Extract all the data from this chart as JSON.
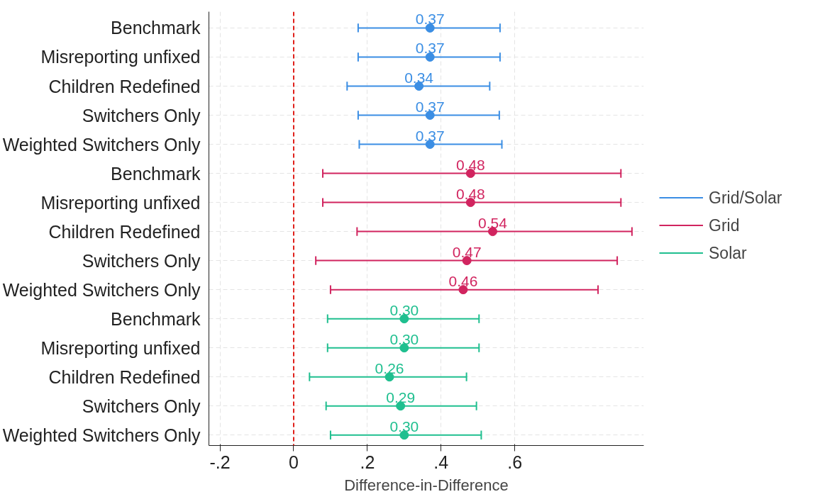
{
  "chart_data": {
    "type": "scatter",
    "xlabel": "Difference-in-Difference",
    "categories": [
      "Benchmark",
      "Misreporting unfixed",
      "Children Redefined",
      "Switchers Only",
      "Weighted Switchers Only",
      "Benchmark",
      "Misreporting unfixed",
      "Children Redefined",
      "Switchers Only",
      "Weighted Switchers Only",
      "Benchmark",
      "Misreporting unfixed",
      "Children Redefined",
      "Switchers Only",
      "Weighted Switchers Only"
    ],
    "orientation": "horizontal",
    "series": [
      {
        "name": "Grid/Solar",
        "color": "#3b8ee4",
        "values": [
          0.37,
          0.37,
          0.34,
          0.37,
          0.37,
          null,
          null,
          null,
          null,
          null,
          null,
          null,
          null,
          null,
          null
        ],
        "value_labels": [
          "0.37",
          "0.37",
          "0.34",
          "0.37",
          "0.37",
          null,
          null,
          null,
          null,
          null,
          null,
          null,
          null,
          null,
          null
        ],
        "errors": [
          [
            0.175,
            0.56
          ],
          [
            0.175,
            0.56
          ],
          [
            0.145,
            0.532
          ],
          [
            0.175,
            0.558
          ],
          [
            0.178,
            0.565
          ],
          null,
          null,
          null,
          null,
          null,
          null,
          null,
          null,
          null,
          null
        ]
      },
      {
        "name": "Grid",
        "color": "#d1245f",
        "values": [
          null,
          null,
          null,
          null,
          null,
          0.48,
          0.48,
          0.54,
          0.47,
          0.46,
          null,
          null,
          null,
          null,
          null
        ],
        "value_labels": [
          null,
          null,
          null,
          null,
          null,
          "0.48",
          "0.48",
          "0.54",
          "0.47",
          "0.46",
          null,
          null,
          null,
          null,
          null
        ],
        "errors": [
          null,
          null,
          null,
          null,
          null,
          [
            0.079,
            0.888
          ],
          [
            0.079,
            0.888
          ],
          [
            0.172,
            0.918
          ],
          [
            0.06,
            0.878
          ],
          [
            0.1,
            0.826
          ],
          null,
          null,
          null,
          null,
          null
        ]
      },
      {
        "name": "Solar",
        "color": "#1fbf8f",
        "values": [
          null,
          null,
          null,
          null,
          null,
          null,
          null,
          null,
          null,
          null,
          0.3,
          0.3,
          0.26,
          0.29,
          0.3
        ],
        "value_labels": [
          null,
          null,
          null,
          null,
          null,
          null,
          null,
          null,
          null,
          null,
          "0.30",
          "0.30",
          "0.26",
          "0.29",
          "0.30"
        ],
        "errors": [
          null,
          null,
          null,
          null,
          null,
          null,
          null,
          null,
          null,
          null,
          [
            0.092,
            0.503
          ],
          [
            0.092,
            0.503
          ],
          [
            0.043,
            0.469
          ],
          [
            0.088,
            0.496
          ],
          [
            0.1,
            0.509
          ]
        ]
      }
    ],
    "xlim": [
      -0.23,
      0.95
    ],
    "xticks": [
      {
        "value": -0.2,
        "label": "-.2"
      },
      {
        "value": 0,
        "label": "0"
      },
      {
        "value": 0.2,
        "label": ".2"
      },
      {
        "value": 0.4,
        "label": ".4"
      },
      {
        "value": 0.6,
        "label": ".6"
      }
    ],
    "ref_lines": [
      {
        "axis": "x",
        "value": 0,
        "label": null,
        "color": "#e0201b",
        "line_style": "dashed"
      }
    ],
    "grid": true,
    "legend": "right",
    "marker": "circle"
  }
}
